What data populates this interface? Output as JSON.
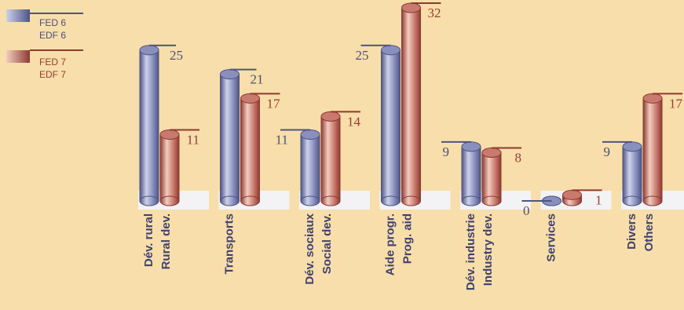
{
  "chart_data": {
    "type": "bar",
    "categories": [
      [
        "Dév. rural",
        "Rural dev."
      ],
      [
        "Transports"
      ],
      [
        "Dév. sociaux",
        "Social dev."
      ],
      [
        "Aide progr.",
        "Prog. aid"
      ],
      [
        "Dév. industrie",
        "Industry dev."
      ],
      [
        "Services"
      ],
      [
        "Divers",
        "Others"
      ]
    ],
    "series": [
      {
        "name": "FED 6 / EDF 6",
        "values": [
          25,
          21,
          11,
          25,
          9,
          0,
          9
        ]
      },
      {
        "name": "FED 7 / EDF 7",
        "values": [
          11,
          17,
          14,
          32,
          8,
          1,
          17
        ]
      }
    ],
    "value_labels": [
      [
        "25",
        "21",
        "11",
        "25",
        "9",
        "0",
        "9"
      ],
      [
        "11",
        "17",
        "14",
        "32",
        "8",
        "1",
        "17"
      ]
    ],
    "ylim": [
      0,
      32
    ],
    "grid": false,
    "legend_position": "top-left",
    "colors": {
      "background": "#f8deaa",
      "series1_light": "#cdd1ea",
      "series1_mid": "#8a90bd",
      "series1_dark": "#4e5484",
      "series2_light": "#f2cdbf",
      "series2_mid": "#c97a6e",
      "series2_dark": "#8e3a32",
      "base_panel": "#f3f3f5",
      "label_blue": "#4b4f7a",
      "label_red": "#9b3b35",
      "axis_text": "#3f4170"
    }
  },
  "legend": {
    "series1_line1": "FED 6",
    "series1_line2": "EDF 6",
    "series2_line1": "FED 7",
    "series2_line2": "EDF 7"
  }
}
